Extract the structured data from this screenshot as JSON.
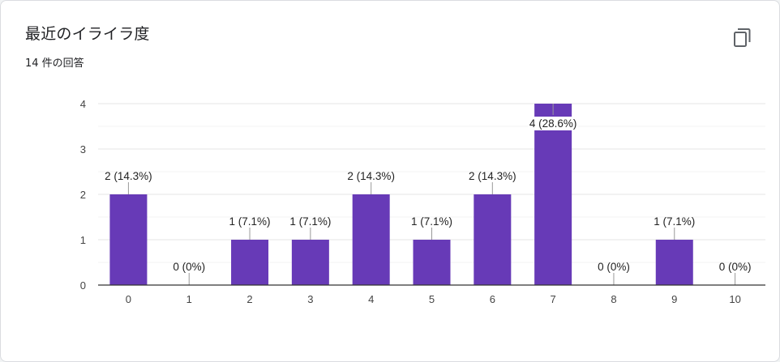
{
  "header": {
    "title": "最近のイライラ度",
    "response_count": "14 件の回答"
  },
  "toolbar": {
    "copy_icon": "copy-icon"
  },
  "colors": {
    "bar": "#673ab7",
    "gridline": "#eeeeee",
    "axis": "#333333",
    "connector": "#999999"
  },
  "chart_data": {
    "type": "bar",
    "categories": [
      "0",
      "1",
      "2",
      "3",
      "4",
      "5",
      "6",
      "7",
      "8",
      "9",
      "10"
    ],
    "values": [
      2,
      0,
      1,
      1,
      2,
      1,
      2,
      4,
      0,
      1,
      0
    ],
    "data_labels": [
      "2 (14.3%)",
      "0 (0%)",
      "1 (7.1%)",
      "1 (7.1%)",
      "2 (14.3%)",
      "1 (7.1%)",
      "2 (14.3%)",
      "4 (28.6%)",
      "0 (0%)",
      "1 (7.1%)",
      "0 (0%)"
    ],
    "y_ticks": [
      "0",
      "1",
      "2",
      "3",
      "4"
    ],
    "ylim": [
      0,
      4
    ],
    "grid": true,
    "legend": "none"
  }
}
